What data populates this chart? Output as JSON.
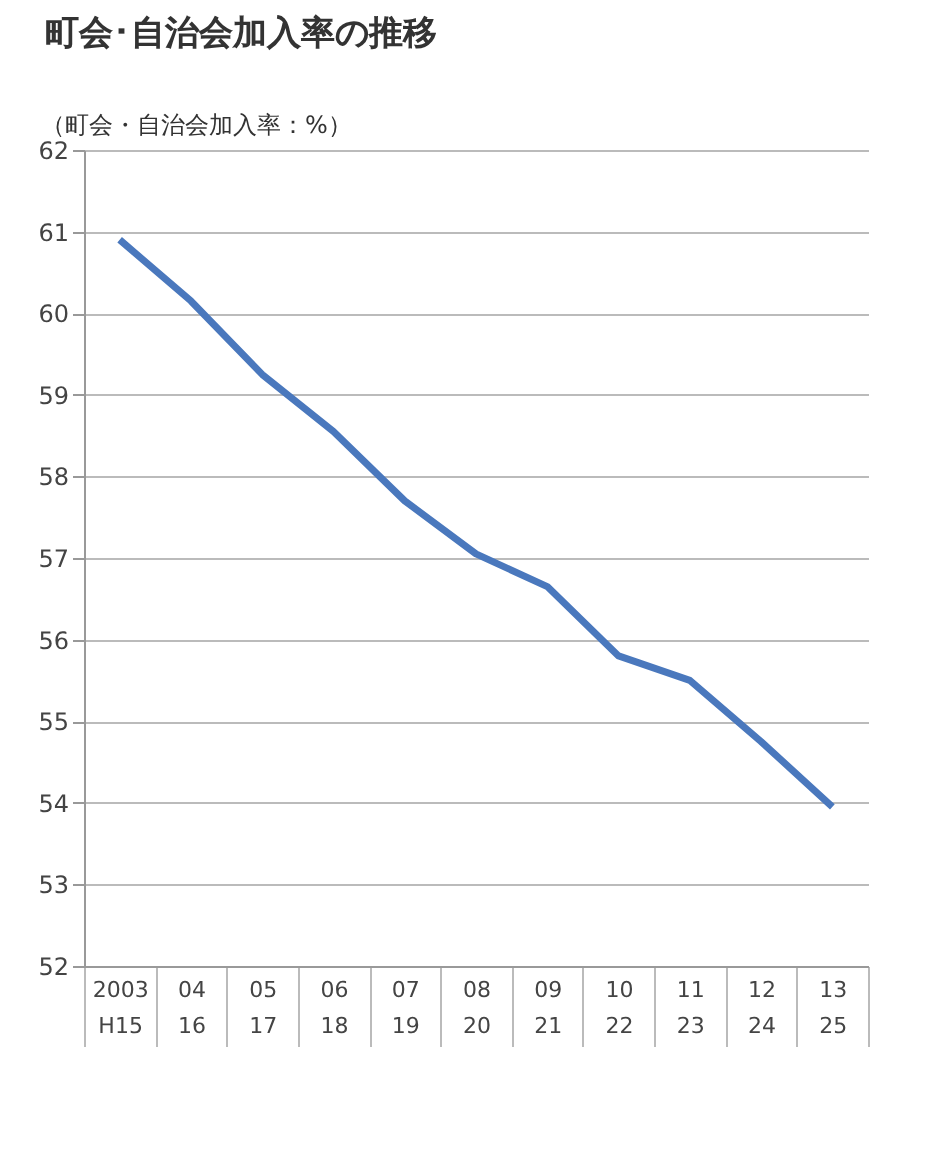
{
  "chart_data": {
    "type": "line",
    "title": "町会･自治会加入率の推移",
    "ylabel": "（町会・自治会加入率：%）",
    "categories": [
      "2003\nH15",
      "04\n16",
      "05\n17",
      "06\n18",
      "07\n19",
      "08\n20",
      "09\n21",
      "10\n22",
      "11\n23",
      "12\n24",
      "13\n25"
    ],
    "series": [
      {
        "color": "#4a78bd",
        "values": [
          60.9,
          60.15,
          59.25,
          58.55,
          57.7,
          57.05,
          56.65,
          55.8,
          55.5,
          54.75,
          53.95
        ]
      }
    ],
    "ylim": [
      52,
      62
    ],
    "yticks": [
      52,
      53,
      54,
      55,
      56,
      57,
      58,
      59,
      60,
      61,
      62
    ],
    "grid": "y",
    "marker": "none",
    "line_style": "solid"
  }
}
